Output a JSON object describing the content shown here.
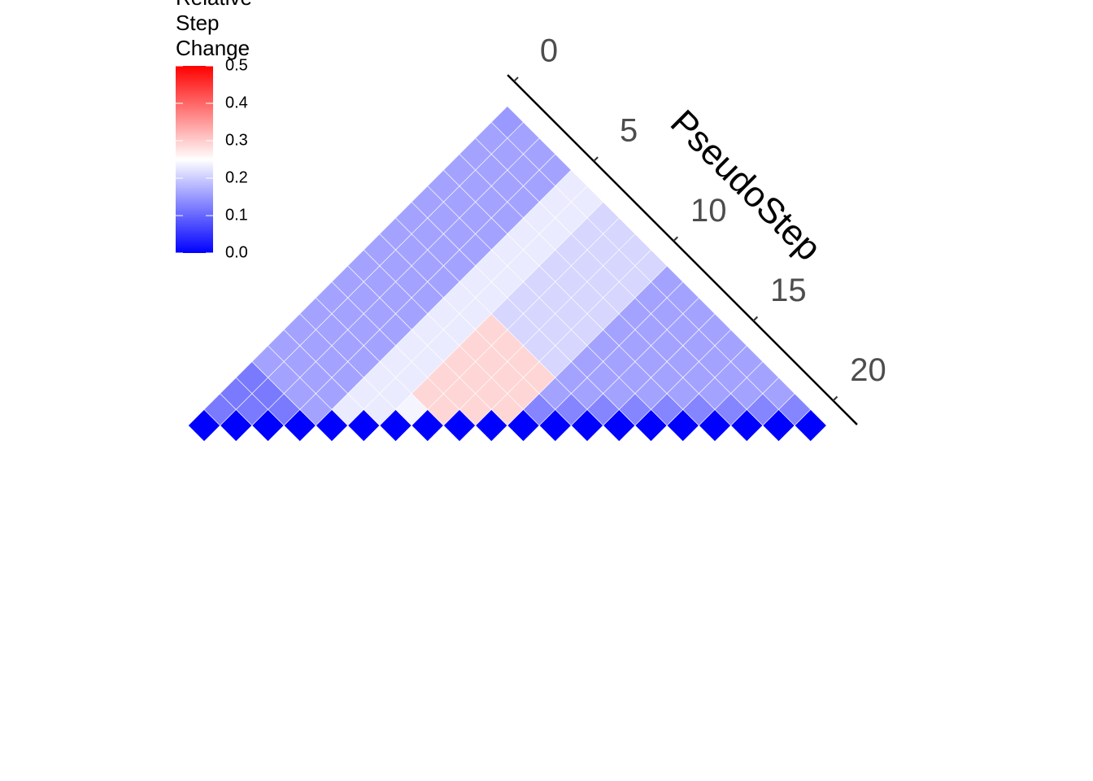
{
  "chart_data": {
    "type": "triangle-heatmap",
    "axis_title": "PseudoStep",
    "legend_title": "Relative Step Change",
    "xlim": [
      -0.4,
      21.5
    ],
    "xticks": [
      0,
      5,
      10,
      15,
      20
    ],
    "zlim": [
      0,
      0.5
    ],
    "zticks": [
      {
        "value": 0,
        "label": "0.0"
      },
      0.1,
      0.2,
      0.3,
      0.4,
      0.5
    ],
    "colors": [
      "#0000ff",
      "#ffffff",
      "#ff0000"
    ],
    "midpoint": 0.25,
    "z": [
      [
        0,
        0,
        0,
        0,
        0,
        0,
        0,
        0,
        0,
        0,
        0,
        0,
        0,
        0,
        0,
        0,
        0,
        0,
        0,
        0
      ],
      [
        0.12,
        0.12,
        0.12,
        0.16,
        0.23,
        0.23,
        0.24,
        0.29,
        0.29,
        0.29,
        0.13,
        0.13,
        0.13,
        0.13,
        0.13,
        0.13,
        0.13,
        0.13,
        0.13
      ],
      [
        0.12,
        0.12,
        0.16,
        0.16,
        0.23,
        0.23,
        0.29,
        0.29,
        0.29,
        0.29,
        0.16,
        0.16,
        0.16,
        0.16,
        0.16,
        0.16,
        0.16,
        0.16
      ],
      [
        0.12,
        0.16,
        0.16,
        0.16,
        0.23,
        0.23,
        0.29,
        0.29,
        0.29,
        0.29,
        0.16,
        0.16,
        0.16,
        0.16,
        0.16,
        0.16,
        0.16
      ],
      [
        0.16,
        0.16,
        0.16,
        0.16,
        0.23,
        0.23,
        0.29,
        0.29,
        0.29,
        0.21,
        0.16,
        0.16,
        0.16,
        0.16,
        0.16,
        0.16
      ],
      [
        0.16,
        0.16,
        0.16,
        0.16,
        0.23,
        0.23,
        0.29,
        0.29,
        0.21,
        0.21,
        0.16,
        0.16,
        0.16,
        0.16,
        0.16
      ],
      [
        0.16,
        0.16,
        0.16,
        0.16,
        0.23,
        0.23,
        0.29,
        0.21,
        0.21,
        0.21,
        0.16,
        0.16,
        0.16,
        0.16
      ],
      [
        0.16,
        0.16,
        0.16,
        0.16,
        0.23,
        0.23,
        0.21,
        0.21,
        0.21,
        0.21,
        0.16,
        0.16,
        0.16
      ],
      [
        0.16,
        0.16,
        0.16,
        0.16,
        0.23,
        0.23,
        0.21,
        0.21,
        0.21,
        0.21,
        0.16,
        0.16
      ],
      [
        0.16,
        0.16,
        0.16,
        0.16,
        0.23,
        0.23,
        0.21,
        0.21,
        0.21,
        0.21,
        0.16
      ],
      [
        0.16,
        0.16,
        0.16,
        0.16,
        0.23,
        0.23,
        0.21,
        0.21,
        0.21,
        0.21
      ],
      [
        0.16,
        0.16,
        0.16,
        0.16,
        0.23,
        0.23,
        0.21,
        0.21,
        0.21
      ],
      [
        0.16,
        0.16,
        0.16,
        0.16,
        0.23,
        0.23,
        0.21,
        0.21
      ],
      [
        0.16,
        0.16,
        0.16,
        0.16,
        0.23,
        0.23,
        0.21
      ],
      [
        0.16,
        0.16,
        0.16,
        0.16,
        0.23,
        0.23
      ],
      [
        0.16,
        0.16,
        0.16,
        0.16,
        0.23
      ],
      [
        0.16,
        0.16,
        0.16,
        0.16
      ],
      [
        0.16,
        0.16,
        0.16
      ],
      [
        0.16,
        0.16
      ],
      [
        0.15
      ]
    ]
  }
}
